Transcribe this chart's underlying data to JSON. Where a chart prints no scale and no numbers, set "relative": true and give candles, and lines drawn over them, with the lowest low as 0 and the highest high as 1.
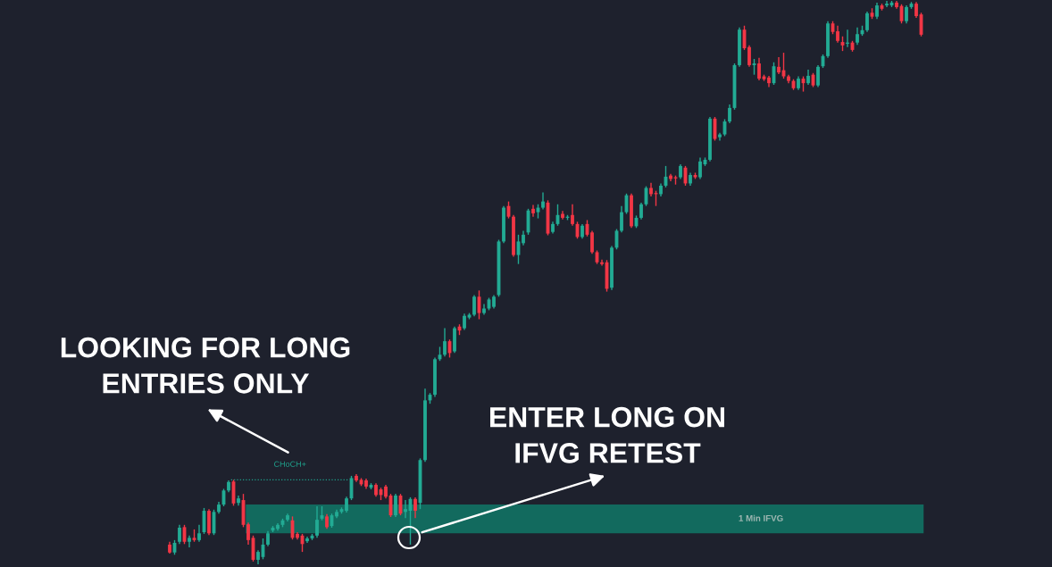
{
  "chart_data": {
    "type": "candlestick",
    "relative": true,
    "categories": [
      null,
      null,
      null,
      null,
      null,
      null,
      null,
      null,
      null,
      null,
      null,
      null,
      null,
      null,
      null,
      null,
      null,
      null,
      null,
      null,
      null,
      null,
      null,
      null,
      null,
      null,
      null,
      null,
      null,
      null,
      null,
      null,
      null,
      null,
      null,
      null,
      null,
      null,
      null,
      null,
      null,
      null,
      null,
      null,
      null,
      null,
      null,
      null,
      null,
      null,
      null,
      null,
      null,
      null,
      null,
      null,
      null,
      null,
      null,
      null,
      null,
      null,
      null,
      null,
      null,
      null,
      null,
      null,
      null,
      null,
      null,
      null,
      null,
      null,
      null,
      null,
      null,
      null,
      null,
      null,
      null,
      null,
      null,
      null,
      null,
      null,
      null,
      null,
      null,
      null,
      null,
      null,
      null,
      null,
      null,
      null,
      null,
      null,
      null,
      null,
      null,
      null,
      null,
      null,
      null,
      null,
      null,
      null,
      null,
      null,
      null,
      null,
      null,
      null,
      null,
      null,
      null,
      null,
      null,
      null,
      null,
      null,
      null,
      null,
      null,
      null,
      null,
      null,
      null,
      null,
      null,
      null,
      null,
      null,
      null,
      null,
      null,
      null,
      null,
      null,
      null,
      null,
      null,
      null,
      null,
      null,
      null,
      null,
      null,
      null,
      null,
      null,
      null,
      null
    ],
    "ohlc": [
      [
        0.035,
        0.04,
        0.019,
        0.021
      ],
      [
        0.021,
        0.043,
        0.017,
        0.038
      ],
      [
        0.04,
        0.07,
        0.036,
        0.065
      ],
      [
        0.066,
        0.07,
        0.036,
        0.04
      ],
      [
        0.04,
        0.051,
        0.03,
        0.047
      ],
      [
        0.047,
        0.062,
        0.04,
        0.043
      ],
      [
        0.043,
        0.07,
        0.04,
        0.055
      ],
      [
        0.057,
        0.1,
        0.054,
        0.095
      ],
      [
        0.095,
        0.098,
        0.052,
        0.055
      ],
      [
        0.055,
        0.097,
        0.052,
        0.093
      ],
      [
        0.093,
        0.111,
        0.09,
        0.106
      ],
      [
        0.106,
        0.134,
        0.103,
        0.131
      ],
      [
        0.131,
        0.149,
        0.128,
        0.146
      ],
      [
        0.147,
        0.15,
        0.104,
        0.108
      ],
      [
        0.109,
        0.122,
        0.104,
        0.117
      ],
      [
        0.114,
        0.125,
        0.066,
        0.07
      ],
      [
        0.071,
        0.074,
        0.035,
        0.043
      ],
      [
        0.047,
        0.051,
        0.005,
        0.008
      ],
      [
        0.008,
        0.025,
        0.0,
        0.022
      ],
      [
        0.013,
        0.046,
        0.009,
        0.035
      ],
      [
        0.035,
        0.059,
        0.032,
        0.055
      ],
      [
        0.06,
        0.068,
        0.057,
        0.065
      ],
      [
        0.063,
        0.073,
        0.06,
        0.07
      ],
      [
        0.07,
        0.081,
        0.066,
        0.078
      ],
      [
        0.079,
        0.09,
        0.076,
        0.087
      ],
      [
        0.078,
        0.085,
        0.044,
        0.047
      ],
      [
        0.054,
        0.057,
        0.044,
        0.047
      ],
      [
        0.051,
        0.054,
        0.022,
        0.036
      ],
      [
        0.041,
        0.049,
        0.038,
        0.046
      ],
      [
        0.046,
        0.054,
        0.043,
        0.051
      ],
      [
        0.051,
        0.103,
        0.047,
        0.079
      ],
      [
        0.081,
        0.103,
        0.078,
        0.087
      ],
      [
        0.085,
        0.089,
        0.063,
        0.066
      ],
      [
        0.068,
        0.09,
        0.065,
        0.087
      ],
      [
        0.085,
        0.097,
        0.082,
        0.093
      ],
      [
        0.093,
        0.101,
        0.09,
        0.098
      ],
      [
        0.095,
        0.12,
        0.092,
        0.117
      ],
      [
        0.117,
        0.157,
        0.114,
        0.153
      ],
      [
        0.157,
        0.16,
        0.146,
        0.149
      ],
      [
        0.15,
        0.153,
        0.139,
        0.142
      ],
      [
        0.149,
        0.152,
        0.134,
        0.138
      ],
      [
        0.136,
        0.144,
        0.133,
        0.141
      ],
      [
        0.141,
        0.144,
        0.12,
        0.123
      ],
      [
        0.133,
        0.136,
        0.114,
        0.123
      ],
      [
        0.138,
        0.141,
        0.117,
        0.12
      ],
      [
        0.122,
        0.125,
        0.084,
        0.087
      ],
      [
        0.087,
        0.125,
        0.084,
        0.122
      ],
      [
        0.122,
        0.125,
        0.087,
        0.09
      ],
      [
        0.093,
        0.114,
        0.082,
        0.098
      ],
      [
        0.095,
        0.119,
        0.035,
        0.116
      ],
      [
        0.116,
        0.119,
        0.082,
        0.095
      ],
      [
        0.109,
        0.188,
        0.098,
        0.185
      ],
      [
        0.185,
        0.312,
        0.182,
        0.291
      ],
      [
        0.291,
        0.304,
        0.285,
        0.301
      ],
      [
        0.301,
        0.367,
        0.297,
        0.364
      ],
      [
        0.364,
        0.386,
        0.361,
        0.372
      ],
      [
        0.372,
        0.419,
        0.369,
        0.396
      ],
      [
        0.396,
        0.399,
        0.367,
        0.375
      ],
      [
        0.378,
        0.422,
        0.375,
        0.419
      ],
      [
        0.422,
        0.426,
        0.407,
        0.415
      ],
      [
        0.419,
        0.445,
        0.416,
        0.441
      ],
      [
        0.438,
        0.446,
        0.435,
        0.443
      ],
      [
        0.443,
        0.478,
        0.44,
        0.475
      ],
      [
        0.475,
        0.486,
        0.435,
        0.446
      ],
      [
        0.446,
        0.462,
        0.443,
        0.454
      ],
      [
        0.454,
        0.473,
        0.451,
        0.47
      ],
      [
        0.457,
        0.478,
        0.454,
        0.475
      ],
      [
        0.478,
        0.576,
        0.475,
        0.573
      ],
      [
        0.573,
        0.636,
        0.57,
        0.633
      ],
      [
        0.636,
        0.644,
        0.614,
        0.617
      ],
      [
        0.617,
        0.62,
        0.546,
        0.549
      ],
      [
        0.549,
        0.585,
        0.533,
        0.573
      ],
      [
        0.57,
        0.592,
        0.566,
        0.585
      ],
      [
        0.589,
        0.631,
        0.585,
        0.628
      ],
      [
        0.631,
        0.638,
        0.617,
        0.623
      ],
      [
        0.625,
        0.639,
        0.614,
        0.633
      ],
      [
        0.633,
        0.66,
        0.63,
        0.644
      ],
      [
        0.642,
        0.646,
        0.584,
        0.587
      ],
      [
        0.59,
        0.608,
        0.587,
        0.604
      ],
      [
        0.604,
        0.639,
        0.601,
        0.62
      ],
      [
        0.622,
        0.627,
        0.612,
        0.615
      ],
      [
        0.615,
        0.62,
        0.611,
        0.617
      ],
      [
        0.62,
        0.639,
        0.601,
        0.604
      ],
      [
        0.604,
        0.608,
        0.578,
        0.581
      ],
      [
        0.581,
        0.604,
        0.578,
        0.601
      ],
      [
        0.604,
        0.611,
        0.582,
        0.585
      ],
      [
        0.589,
        0.592,
        0.551,
        0.554
      ],
      [
        0.554,
        0.557,
        0.533,
        0.536
      ],
      [
        0.536,
        0.541,
        0.53,
        0.533
      ],
      [
        0.536,
        0.54,
        0.484,
        0.489
      ],
      [
        0.491,
        0.565,
        0.487,
        0.562
      ],
      [
        0.562,
        0.595,
        0.559,
        0.592
      ],
      [
        0.592,
        0.636,
        0.589,
        0.625
      ],
      [
        0.625,
        0.658,
        0.622,
        0.655
      ],
      [
        0.655,
        0.658,
        0.597,
        0.6
      ],
      [
        0.6,
        0.619,
        0.597,
        0.615
      ],
      [
        0.615,
        0.642,
        0.612,
        0.639
      ],
      [
        0.639,
        0.671,
        0.636,
        0.668
      ],
      [
        0.668,
        0.677,
        0.653,
        0.657
      ],
      [
        0.658,
        0.663,
        0.636,
        0.657
      ],
      [
        0.657,
        0.676,
        0.653,
        0.672
      ],
      [
        0.672,
        0.707,
        0.669,
        0.688
      ],
      [
        0.69,
        0.693,
        0.68,
        0.684
      ],
      [
        0.687,
        0.69,
        0.674,
        0.685
      ],
      [
        0.687,
        0.71,
        0.684,
        0.707
      ],
      [
        0.704,
        0.707,
        0.672,
        0.676
      ],
      [
        0.676,
        0.695,
        0.672,
        0.691
      ],
      [
        0.691,
        0.695,
        0.684,
        0.687
      ],
      [
        0.687,
        0.722,
        0.684,
        0.715
      ],
      [
        0.71,
        0.722,
        0.707,
        0.718
      ],
      [
        0.718,
        0.794,
        0.715,
        0.791
      ],
      [
        0.791,
        0.794,
        0.752,
        0.755
      ],
      [
        0.758,
        0.766,
        0.752,
        0.763
      ],
      [
        0.763,
        0.79,
        0.76,
        0.786
      ],
      [
        0.786,
        0.816,
        0.783,
        0.81
      ],
      [
        0.81,
        0.889,
        0.807,
        0.886
      ],
      [
        0.886,
        0.953,
        0.883,
        0.949
      ],
      [
        0.949,
        0.956,
        0.913,
        0.916
      ],
      [
        0.918,
        0.921,
        0.883,
        0.886
      ],
      [
        0.886,
        0.897,
        0.869,
        0.889
      ],
      [
        0.889,
        0.899,
        0.859,
        0.862
      ],
      [
        0.866,
        0.869,
        0.858,
        0.861
      ],
      [
        0.864,
        0.867,
        0.847,
        0.854
      ],
      [
        0.854,
        0.891,
        0.851,
        0.884
      ],
      [
        0.883,
        0.9,
        0.87,
        0.873
      ],
      [
        0.877,
        0.908,
        0.862,
        0.866
      ],
      [
        0.866,
        0.869,
        0.854,
        0.858
      ],
      [
        0.858,
        0.861,
        0.842,
        0.845
      ],
      [
        0.845,
        0.866,
        0.842,
        0.862
      ],
      [
        0.862,
        0.866,
        0.839,
        0.854
      ],
      [
        0.854,
        0.878,
        0.851,
        0.867
      ],
      [
        0.869,
        0.872,
        0.847,
        0.85
      ],
      [
        0.85,
        0.886,
        0.847,
        0.883
      ],
      [
        0.884,
        0.905,
        0.881,
        0.902
      ],
      [
        0.902,
        0.964,
        0.899,
        0.96
      ],
      [
        0.96,
        0.964,
        0.941,
        0.945
      ],
      [
        0.946,
        0.956,
        0.926,
        0.929
      ],
      [
        0.927,
        0.937,
        0.911,
        0.921
      ],
      [
        0.924,
        0.949,
        0.918,
        0.926
      ],
      [
        0.926,
        0.929,
        0.91,
        0.913
      ],
      [
        0.926,
        0.953,
        0.922,
        0.941
      ],
      [
        0.941,
        0.956,
        0.938,
        0.948
      ],
      [
        0.948,
        0.981,
        0.945,
        0.978
      ],
      [
        0.979,
        0.987,
        0.968,
        0.972
      ],
      [
        0.972,
        0.997,
        0.968,
        0.992
      ],
      [
        0.992,
        0.995,
        0.983,
        0.986
      ],
      [
        0.992,
        1.0,
        0.989,
        0.995
      ],
      [
        0.992,
        1.0,
        0.989,
        0.997
      ],
      [
        0.997,
        1.0,
        0.986,
        0.989
      ],
      [
        0.991,
        0.994,
        0.96,
        0.964
      ],
      [
        0.964,
        0.992,
        0.96,
        0.989
      ],
      [
        0.989,
        0.998,
        0.986,
        0.995
      ],
      [
        0.995,
        0.998,
        0.97,
        0.973
      ],
      [
        0.976,
        0.979,
        0.937,
        0.94
      ]
    ],
    "colors": [
      "#f23645",
      "#22ab94",
      "#22ab94",
      "#f23645",
      "#22ab94",
      "#f23645",
      "#22ab94",
      "#22ab94",
      "#f23645",
      "#22ab94",
      "#22ab94",
      "#22ab94",
      "#22ab94",
      "#f23645",
      "#22ab94",
      "#f23645",
      "#f23645",
      "#f23645",
      "#22ab94",
      "#22ab94",
      "#22ab94",
      "#22ab94",
      "#22ab94",
      "#22ab94",
      "#22ab94",
      "#f23645",
      "#f23645",
      "#f23645",
      "#22ab94",
      "#22ab94",
      "#22ab94",
      "#22ab94",
      "#f23645",
      "#22ab94",
      "#22ab94",
      "#22ab94",
      "#22ab94",
      "#22ab94",
      "#f23645",
      "#f23645",
      "#f23645",
      "#22ab94",
      "#f23645",
      "#f23645",
      "#f23645",
      "#f23645",
      "#22ab94",
      "#f23645",
      "#22ab94",
      "#22ab94",
      "#f23645",
      "#22ab94",
      "#22ab94",
      "#22ab94",
      "#22ab94",
      "#22ab94",
      "#22ab94",
      "#f23645",
      "#22ab94",
      "#f23645",
      "#22ab94",
      "#22ab94",
      "#22ab94",
      "#f23645",
      "#22ab94",
      "#22ab94",
      "#22ab94",
      "#22ab94",
      "#22ab94",
      "#f23645",
      "#f23645",
      "#22ab94",
      "#22ab94",
      "#22ab94",
      "#f23645",
      "#22ab94",
      "#22ab94",
      "#f23645",
      "#22ab94",
      "#22ab94",
      "#f23645",
      "#22ab94",
      "#f23645",
      "#f23645",
      "#22ab94",
      "#f23645",
      "#f23645",
      "#f23645",
      "#f23645",
      "#f23645",
      "#22ab94",
      "#22ab94",
      "#22ab94",
      "#22ab94",
      "#f23645",
      "#22ab94",
      "#22ab94",
      "#22ab94",
      "#f23645",
      "#f23645",
      "#22ab94",
      "#22ab94",
      "#f23645",
      "#f23645",
      "#22ab94",
      "#f23645",
      "#22ab94",
      "#f23645",
      "#22ab94",
      "#22ab94",
      "#22ab94",
      "#f23645",
      "#22ab94",
      "#22ab94",
      "#22ab94",
      "#22ab94",
      "#22ab94",
      "#f23645",
      "#f23645",
      "#22ab94",
      "#f23645",
      "#f23645",
      "#f23645",
      "#22ab94",
      "#f23645",
      "#f23645",
      "#f23645",
      "#f23645",
      "#22ab94",
      "#f23645",
      "#22ab94",
      "#f23645",
      "#22ab94",
      "#22ab94",
      "#22ab94",
      "#f23645",
      "#f23645",
      "#f23645",
      "#22ab94",
      "#f23645",
      "#22ab94",
      "#22ab94",
      "#22ab94",
      "#f23645",
      "#22ab94",
      "#f23645",
      "#22ab94",
      "#22ab94",
      "#f23645",
      "#f23645",
      "#22ab94",
      "#22ab94",
      "#f23645",
      "#f23645"
    ],
    "bands": [
      {
        "axis": "y",
        "from": 0.055,
        "to": 0.106,
        "label": "1 Min IFVG",
        "color": "#126a5e"
      }
    ],
    "ref_lines": [
      {
        "axis": "y",
        "value": 0.15,
        "label": "CHoCH+",
        "color": "#1f9f8a",
        "line_style": "dotted"
      }
    ],
    "annotations": [
      "LOOKING FOR LONG\nENTRIES ONLY",
      "ENTER LONG ON\nIFVG RETEST"
    ]
  }
}
